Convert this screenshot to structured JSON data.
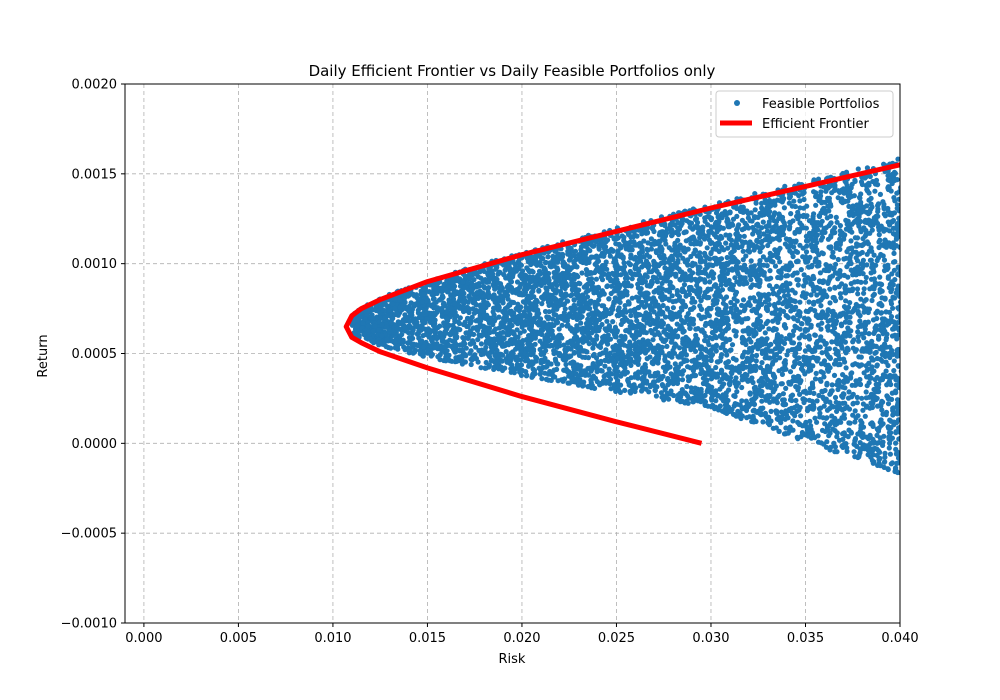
{
  "chart_data": {
    "type": "scatter",
    "title": "Daily Efficient Frontier vs Daily Feasible Portfolios only",
    "xlabel": "Risk",
    "ylabel": "Return",
    "xlim": [
      -0.001,
      0.04
    ],
    "ylim": [
      -0.001,
      0.002
    ],
    "xticks": [
      0.0,
      0.005,
      0.01,
      0.015,
      0.02,
      0.025,
      0.03,
      0.035,
      0.04
    ],
    "xtick_labels": [
      "0.000",
      "0.005",
      "0.010",
      "0.015",
      "0.020",
      "0.025",
      "0.030",
      "0.035",
      "0.040"
    ],
    "yticks": [
      -0.001,
      -0.0005,
      0.0,
      0.0005,
      0.001,
      0.0015,
      0.002
    ],
    "ytick_labels": [
      "−0.0010",
      "−0.0005",
      "0.0000",
      "0.0005",
      "0.0010",
      "0.0015",
      "0.0020"
    ],
    "grid": true,
    "legend_position": "top-right",
    "series": [
      {
        "name": "Feasible Portfolios",
        "kind": "scatter",
        "color": "#1f77b4",
        "note_region": "dense cloud bounded on the left by the frontier, extending to x=0.040 with returns from about -0.00024 to 0.00155"
      },
      {
        "name": "Efficient Frontier",
        "kind": "line",
        "color": "#ff0000",
        "min_risk": 0.0107,
        "min_risk_return": 0.00065,
        "x": [
          0.0295,
          0.025,
          0.02,
          0.015,
          0.0125,
          0.0115,
          0.011,
          0.0107,
          0.011,
          0.0115,
          0.0125,
          0.015,
          0.02,
          0.025,
          0.03,
          0.035,
          0.04
        ],
        "y": [
          0.0,
          0.00012,
          0.00026,
          0.00042,
          0.00051,
          0.00056,
          0.00059,
          0.00065,
          0.00071,
          0.00075,
          0.0008,
          0.0009,
          0.00105,
          0.00118,
          0.00131,
          0.00143,
          0.00155
        ]
      }
    ]
  }
}
